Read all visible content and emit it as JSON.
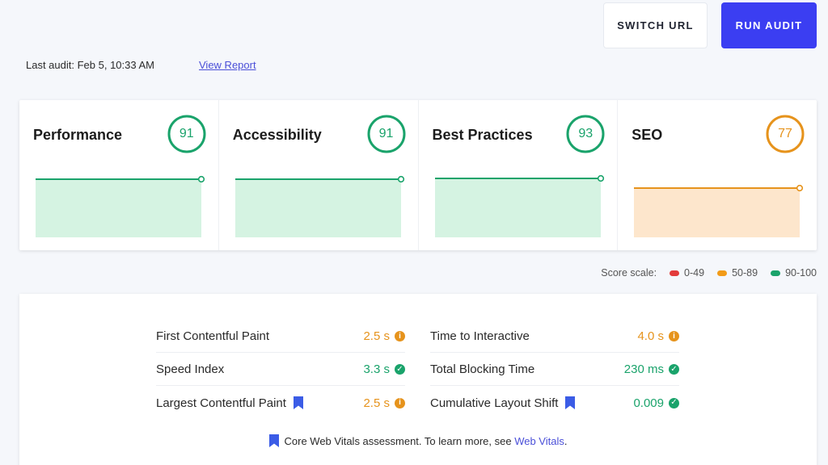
{
  "header": {
    "switch_url_label": "SWITCH URL",
    "run_audit_label": "RUN AUDIT",
    "last_audit_text": "Last audit: Feb 5, 10:33 AM",
    "view_report_label": "View Report"
  },
  "categories": [
    {
      "title": "Performance",
      "score": "91",
      "color": "#1aa36b",
      "fill": "#d5f3e2",
      "rating": "good"
    },
    {
      "title": "Accessibility",
      "score": "91",
      "color": "#1aa36b",
      "fill": "#d5f3e2",
      "rating": "good"
    },
    {
      "title": "Best Practices",
      "score": "93",
      "color": "#1aa36b",
      "fill": "#d5f3e2",
      "rating": "good"
    },
    {
      "title": "SEO",
      "score": "77",
      "color": "#e6931c",
      "fill": "#fde6cc",
      "rating": "average"
    }
  ],
  "score_scale": {
    "label": "Score scale:",
    "ranges": [
      {
        "label": "0-49",
        "color": "#e33b3b"
      },
      {
        "label": "50-89",
        "color": "#f29b18"
      },
      {
        "label": "90-100",
        "color": "#1aa36b"
      }
    ]
  },
  "metrics": [
    {
      "label": "First Contentful Paint",
      "value": "2.5 s",
      "status": "average",
      "core_web_vital": false
    },
    {
      "label": "Time to Interactive",
      "value": "4.0 s",
      "status": "average",
      "core_web_vital": false
    },
    {
      "label": "Speed Index",
      "value": "3.3 s",
      "status": "good",
      "core_web_vital": false
    },
    {
      "label": "Total Blocking Time",
      "value": "230 ms",
      "status": "good",
      "core_web_vital": false
    },
    {
      "label": "Largest Contentful Paint",
      "value": "2.5 s",
      "status": "average",
      "core_web_vital": true
    },
    {
      "label": "Cumulative Layout Shift",
      "value": "0.009",
      "status": "good",
      "core_web_vital": true
    }
  ],
  "colors": {
    "good": "#1aa36b",
    "average": "#e6931c",
    "accent": "#3b3ef2",
    "bookmark": "#3b5ce6"
  },
  "icons": {
    "average": "info-icon",
    "good": "check-icon",
    "core_web_vital": "bookmark-icon"
  },
  "footer": {
    "cwv_text": "Core Web Vitals assessment. To learn more, see",
    "cwv_link": "Web Vitals",
    "cwv_period": "."
  }
}
